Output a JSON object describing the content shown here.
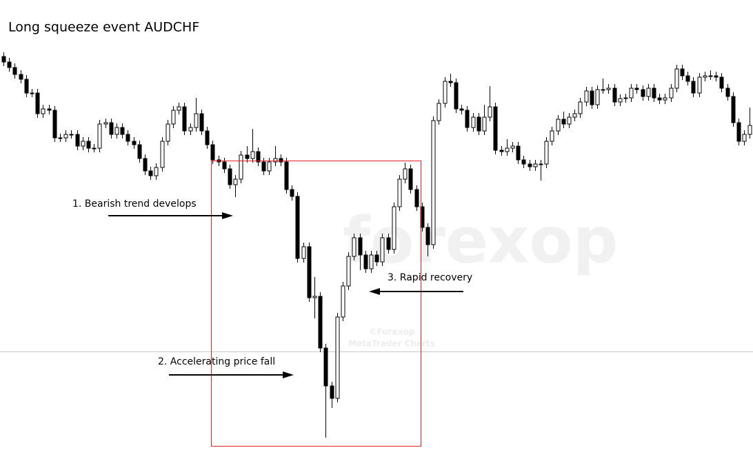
{
  "chart_data": {
    "type": "candlestick",
    "title": "Long squeeze event AUDCHF",
    "annotations": [
      "1. Bearish trend develops",
      "2. Accelerating price fall",
      "3. Rapid recovery"
    ],
    "watermark": [
      "forexop",
      "©Forexop",
      "MetaTrader Charts"
    ],
    "ylim": [
      0,
      682
    ],
    "level_line": 172,
    "ohlc": [
      [
        600,
        606,
        586,
        592
      ],
      [
        592,
        598,
        578,
        584
      ],
      [
        584,
        590,
        568,
        574
      ],
      [
        574,
        580,
        561,
        567
      ],
      [
        567,
        573,
        541,
        547
      ],
      [
        547,
        553,
        541,
        547
      ],
      [
        547,
        553,
        511,
        517
      ],
      [
        517,
        530,
        511,
        524
      ],
      [
        524,
        530,
        516,
        522
      ],
      [
        522,
        528,
        476,
        482
      ],
      [
        482,
        488,
        476,
        482
      ],
      [
        482,
        493,
        476,
        487
      ],
      [
        487,
        493,
        481,
        487
      ],
      [
        487,
        493,
        464,
        470
      ],
      [
        470,
        483,
        464,
        477
      ],
      [
        477,
        483,
        461,
        467
      ],
      [
        467,
        473,
        461,
        467
      ],
      [
        467,
        508,
        461,
        502
      ],
      [
        502,
        510,
        496,
        504
      ],
      [
        504,
        510,
        481,
        487
      ],
      [
        487,
        503,
        481,
        497
      ],
      [
        497,
        503,
        481,
        487
      ],
      [
        487,
        493,
        471,
        477
      ],
      [
        477,
        483,
        466,
        472
      ],
      [
        472,
        478,
        446,
        452
      ],
      [
        452,
        458,
        428,
        434
      ],
      [
        434,
        440,
        421,
        427
      ],
      [
        427,
        445,
        421,
        439
      ],
      [
        439,
        483,
        433,
        477
      ],
      [
        477,
        508,
        471,
        502
      ],
      [
        502,
        528,
        496,
        522
      ],
      [
        522,
        533,
        516,
        527
      ],
      [
        527,
        533,
        486,
        492
      ],
      [
        492,
        503,
        486,
        497
      ],
      [
        497,
        540,
        491,
        517
      ],
      [
        517,
        523,
        486,
        492
      ],
      [
        492,
        498,
        466,
        472
      ],
      [
        472,
        478,
        444,
        450
      ],
      [
        450,
        456,
        441,
        447
      ],
      [
        447,
        453,
        431,
        437
      ],
      [
        437,
        443,
        408,
        414
      ],
      [
        414,
        428,
        396,
        422
      ],
      [
        422,
        463,
        416,
        457
      ],
      [
        457,
        470,
        446,
        452
      ],
      [
        452,
        495,
        446,
        462
      ],
      [
        462,
        468,
        441,
        447
      ],
      [
        447,
        453,
        428,
        434
      ],
      [
        434,
        453,
        428,
        447
      ],
      [
        447,
        470,
        441,
        452
      ],
      [
        452,
        458,
        441,
        447
      ],
      [
        447,
        453,
        401,
        407
      ],
      [
        407,
        413,
        391,
        397
      ],
      [
        397,
        403,
        301,
        307
      ],
      [
        307,
        330,
        301,
        324
      ],
      [
        324,
        330,
        244,
        250
      ],
      [
        250,
        280,
        220,
        252
      ],
      [
        252,
        258,
        171,
        177
      ],
      [
        177,
        183,
        47,
        122
      ],
      [
        122,
        128,
        90,
        104
      ],
      [
        104,
        228,
        98,
        222
      ],
      [
        222,
        273,
        216,
        267
      ],
      [
        267,
        316,
        261,
        310
      ],
      [
        310,
        343,
        304,
        337
      ],
      [
        337,
        343,
        290,
        312
      ],
      [
        312,
        318,
        286,
        292
      ],
      [
        292,
        318,
        286,
        312
      ],
      [
        312,
        318,
        296,
        302
      ],
      [
        302,
        343,
        296,
        337
      ],
      [
        337,
        343,
        314,
        320
      ],
      [
        320,
        388,
        314,
        382
      ],
      [
        382,
        428,
        376,
        422
      ],
      [
        422,
        446,
        416,
        437
      ],
      [
        437,
        443,
        401,
        407
      ],
      [
        407,
        413,
        376,
        382
      ],
      [
        382,
        388,
        346,
        352
      ],
      [
        352,
        358,
        310,
        327
      ],
      [
        327,
        513,
        321,
        507
      ],
      [
        507,
        538,
        501,
        532
      ],
      [
        532,
        570,
        526,
        564
      ],
      [
        564,
        575,
        556,
        562
      ],
      [
        562,
        568,
        518,
        524
      ],
      [
        524,
        530,
        516,
        522
      ],
      [
        522,
        528,
        491,
        497
      ],
      [
        497,
        518,
        491,
        512
      ],
      [
        512,
        518,
        486,
        492
      ],
      [
        492,
        530,
        486,
        512
      ],
      [
        512,
        557,
        506,
        527
      ],
      [
        527,
        533,
        458,
        464
      ],
      [
        464,
        470,
        456,
        462
      ],
      [
        462,
        480,
        456,
        467
      ],
      [
        467,
        476,
        461,
        470
      ],
      [
        470,
        476,
        444,
        450
      ],
      [
        450,
        456,
        438,
        444
      ],
      [
        444,
        450,
        434,
        440
      ],
      [
        440,
        450,
        434,
        444
      ],
      [
        444,
        450,
        420,
        444
      ],
      [
        444,
        483,
        438,
        477
      ],
      [
        477,
        498,
        471,
        492
      ],
      [
        492,
        515,
        486,
        509
      ],
      [
        509,
        520,
        496,
        502
      ],
      [
        502,
        518,
        496,
        512
      ],
      [
        512,
        523,
        506,
        517
      ],
      [
        517,
        540,
        511,
        534
      ],
      [
        534,
        556,
        528,
        550
      ],
      [
        550,
        556,
        524,
        530
      ],
      [
        530,
        558,
        524,
        552
      ],
      [
        552,
        568,
        546,
        552
      ],
      [
        552,
        560,
        546,
        554
      ],
      [
        554,
        560,
        528,
        534
      ],
      [
        534,
        545,
        528,
        539
      ],
      [
        539,
        546,
        533,
        540
      ],
      [
        540,
        560,
        534,
        554
      ],
      [
        554,
        560,
        546,
        552
      ],
      [
        552,
        558,
        536,
        542
      ],
      [
        542,
        560,
        536,
        554
      ],
      [
        554,
        560,
        534,
        540
      ],
      [
        540,
        546,
        531,
        537
      ],
      [
        537,
        546,
        531,
        540
      ],
      [
        540,
        560,
        534,
        554
      ],
      [
        554,
        588,
        548,
        582
      ],
      [
        582,
        588,
        566,
        572
      ],
      [
        572,
        578,
        558,
        564
      ],
      [
        564,
        570,
        541,
        547
      ],
      [
        547,
        576,
        541,
        570
      ],
      [
        570,
        578,
        564,
        572
      ],
      [
        572,
        580,
        566,
        572
      ],
      [
        572,
        578,
        564,
        570
      ],
      [
        570,
        576,
        548,
        554
      ],
      [
        554,
        560,
        536,
        542
      ],
      [
        542,
        548,
        498,
        504
      ],
      [
        504,
        510,
        471,
        477
      ],
      [
        477,
        493,
        471,
        487
      ],
      [
        487,
        526,
        481,
        500
      ]
    ]
  }
}
